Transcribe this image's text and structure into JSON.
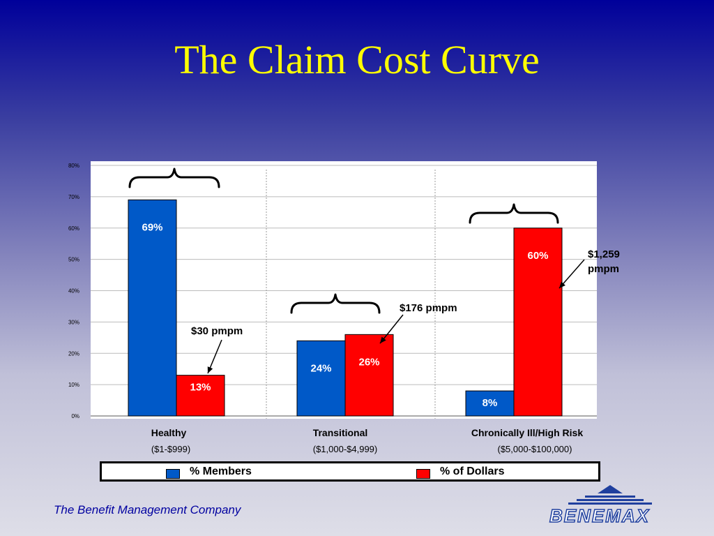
{
  "slide": {
    "title": "The Claim Cost Curve",
    "footer": "The Benefit Management Company",
    "logo_text": "BENEMAX"
  },
  "categories": [
    {
      "name": "Healthy",
      "range": "($1-$999)"
    },
    {
      "name": "Transitional",
      "range": "($1,000-$4,999)"
    },
    {
      "name": "Chronically Ill/High Risk",
      "range": "($5,000-$100,000)"
    }
  ],
  "annotations": [
    {
      "text": "$30 pmpm"
    },
    {
      "text": "$176 pmpm"
    },
    {
      "line1": "$1,259",
      "line2": "pmpm"
    }
  ],
  "legend": [
    {
      "label": "% Members",
      "color": "#0059c8"
    },
    {
      "label": "% of Dollars",
      "color": "#ff0000"
    }
  ],
  "chart_data": {
    "type": "bar",
    "categories": [
      "Healthy",
      "Transitional",
      "Chronically Ill/High Risk"
    ],
    "series": [
      {
        "name": "% Members",
        "values": [
          69,
          24,
          8
        ],
        "labels": [
          "69%",
          "24%",
          "8%"
        ],
        "color": "#0059c8"
      },
      {
        "name": "% of Dollars",
        "values": [
          13,
          26,
          60
        ],
        "labels": [
          "13%",
          "26%",
          "60%"
        ],
        "color": "#ff0000"
      }
    ],
    "ylim": [
      0,
      80
    ],
    "yticks": [
      "0%",
      "10%",
      "20%",
      "30%",
      "40%",
      "50%",
      "60%",
      "70%",
      "80%"
    ],
    "grid": true,
    "legend_position": "bottom"
  }
}
